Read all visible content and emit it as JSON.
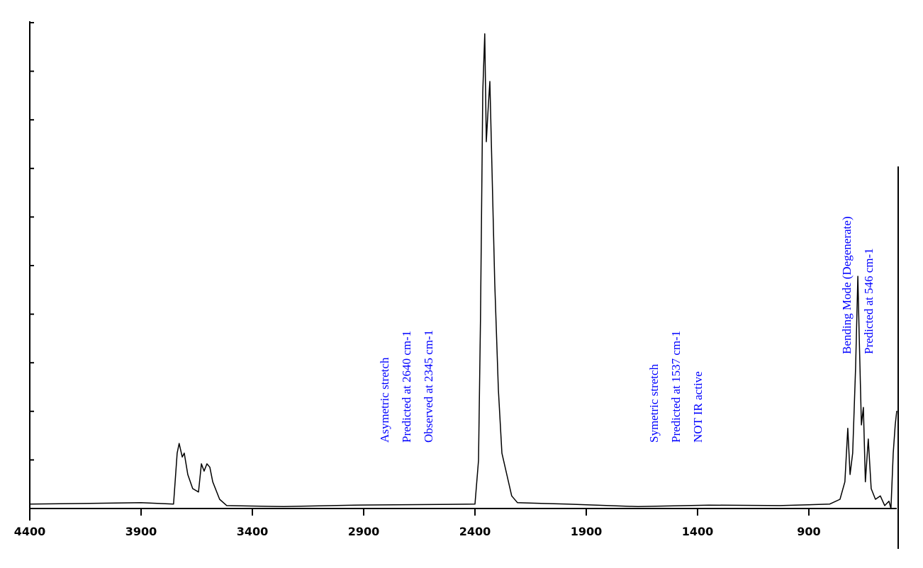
{
  "chart_data": {
    "type": "line",
    "x": [
      4400,
      3900,
      3754,
      3738,
      3729,
      3715,
      3706,
      3690,
      3668,
      3642,
      3629,
      3617,
      3604,
      3591,
      3578,
      3547,
      3515,
      3260,
      2941,
      2400,
      2384,
      2375,
      2365,
      2356,
      2349,
      2340,
      2333,
      2324,
      2311,
      2295,
      2279,
      2257,
      2235,
      2209,
      1986,
      1667,
      1349,
      1030,
      807,
      760,
      738,
      725,
      715,
      703,
      690,
      680,
      674,
      664,
      655,
      646,
      633,
      620,
      601,
      579,
      559,
      540,
      531,
      521,
      512,
      505
    ],
    "series": [
      {
        "color": "#000000",
        "values": [
          0.09,
          0.12,
          0.09,
          1.14,
          1.34,
          1.06,
          1.14,
          0.7,
          0.41,
          0.34,
          0.92,
          0.77,
          0.92,
          0.85,
          0.55,
          0.19,
          0.06,
          0.04,
          0.07,
          0.09,
          0.99,
          3.91,
          8.57,
          9.77,
          7.55,
          8.28,
          8.79,
          7.11,
          4.64,
          2.45,
          1.14,
          0.7,
          0.26,
          0.12,
          0.09,
          0.04,
          0.07,
          0.06,
          0.09,
          0.19,
          0.55,
          1.65,
          0.7,
          1.14,
          2.89,
          4.78,
          3.62,
          1.72,
          2.08,
          0.55,
          1.43,
          0.41,
          0.19,
          0.26,
          0.06,
          0.15,
          0.0,
          1.14,
          1.72,
          2.01
        ]
      }
    ],
    "xlim": [
      4400,
      505
    ],
    "xticks": [
      4400,
      3900,
      3400,
      2900,
      2400,
      1900,
      1400,
      900
    ],
    "ylim": [
      0,
      10
    ],
    "yticks": [
      0,
      1,
      2,
      3,
      4,
      5,
      6,
      7,
      8,
      9,
      10
    ],
    "annotation_color": "#0000ff",
    "annotations": [
      [
        "Asymetric stretch",
        "Predicted at 2640 cm-1",
        "Observed at 2345 cm-1"
      ],
      [
        "Symetric stretch",
        "Predicted at 1537 cm-1",
        "NOT IR active"
      ],
      [
        "Bending Mode (Degenerate)",
        "Predicted at 546 cm-1"
      ]
    ]
  }
}
